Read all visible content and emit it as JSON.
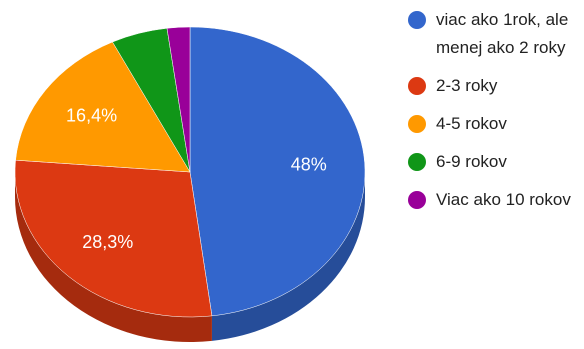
{
  "chart_data": {
    "type": "pie3d",
    "categories": [
      "viac ako 1rok, ale menej ako 2 roky",
      "2-3 roky",
      "4-5 rokov",
      "6-9 rokov",
      "Viac ako 10 rokov"
    ],
    "values": [
      48,
      28.3,
      16.4,
      5.2,
      2.1
    ],
    "value_labels": [
      "48%",
      "28,3%",
      "16,4%",
      null,
      null
    ],
    "colors": [
      "#3366cc",
      "#dc3912",
      "#ff9900",
      "#109618",
      "#990099"
    ],
    "legend": "right"
  }
}
